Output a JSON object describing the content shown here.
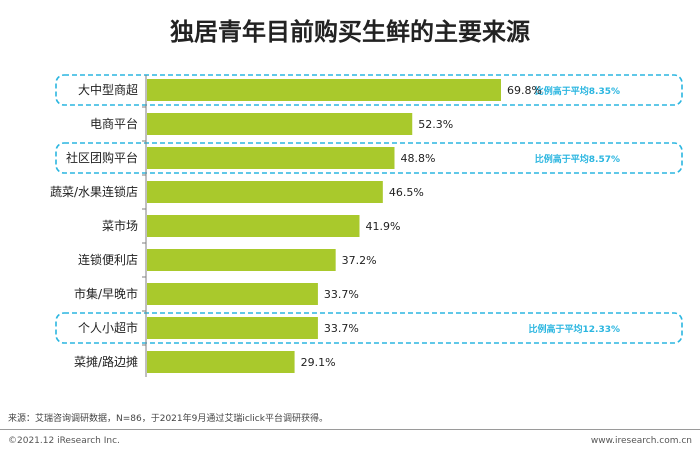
{
  "title": "独居青年目前购买生鲜的主要来源",
  "chart_data": {
    "type": "bar",
    "orientation": "horizontal",
    "categories": [
      "大中型商超",
      "电商平台",
      "社区团购平台",
      "蔬菜/水果连锁店",
      "菜市场",
      "连锁便利店",
      "市集/早晚市",
      "个人小超市",
      "菜摊/路边摊"
    ],
    "values": [
      69.8,
      52.3,
      48.8,
      46.5,
      41.9,
      37.2,
      33.7,
      33.7,
      29.1
    ],
    "value_labels": [
      "69.8%",
      "52.3%",
      "48.8%",
      "46.5%",
      "41.9%",
      "37.2%",
      "33.7%",
      "33.7%",
      "29.1%"
    ],
    "xlim": [
      0,
      69.8
    ],
    "bar_color": "#a9c92c",
    "highlight_color": "#2bb6e0",
    "highlights": [
      {
        "category_index": 0,
        "text": "比例高于平均8.35%"
      },
      {
        "category_index": 2,
        "text": "比例高于平均8.57%"
      },
      {
        "category_index": 7,
        "text": "比例高于平均12.33%"
      }
    ],
    "grid": false,
    "legend": "none"
  },
  "footer": {
    "source": "来源：艾瑞咨询调研数据，N=86，于2021年9月通过艾瑞iclick平台调研获得。",
    "copyright": "©2021.12 iResearch Inc.",
    "website": "www.iresearch.com.cn"
  }
}
